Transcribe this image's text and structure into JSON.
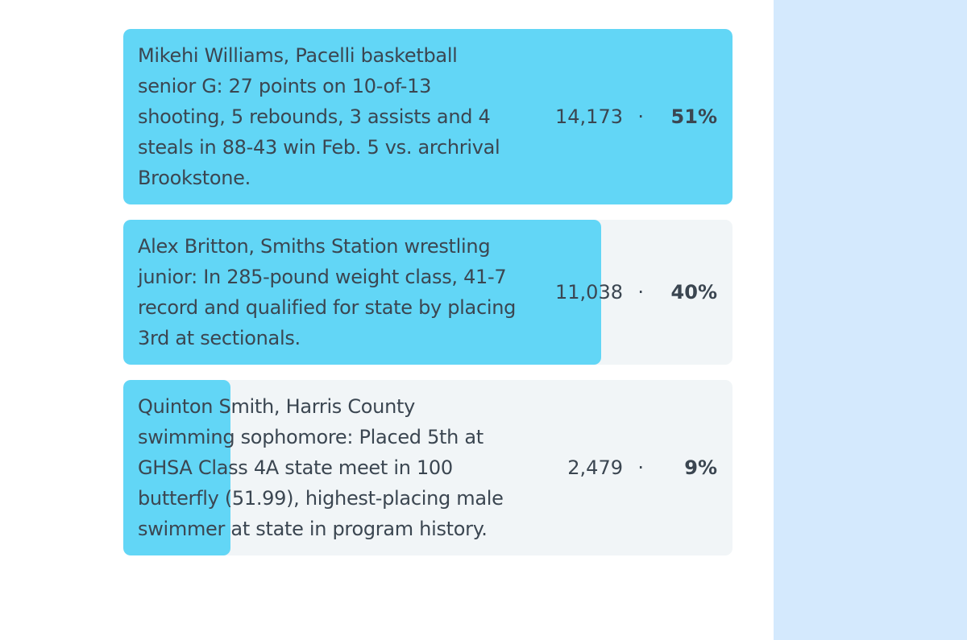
{
  "poll": {
    "options": [
      {
        "label": "Mikehi Williams, Pacelli basketball senior G: 27 points on 10-of-13 shooting, 5 rebounds, 3 assists and 4 steals in 88-43 win Feb. 5 vs. archrival Brookstone.",
        "votes": "14,173",
        "percent": {
          "value": 51,
          "label": "51%"
        }
      },
      {
        "label": "Alex Britton, Smiths Station wrestling junior: In 285-pound weight class, 41-7 record and qualified for state by placing 3rd at sectionals.",
        "votes": "11,038",
        "percent": {
          "value": 40,
          "label": "40%"
        }
      },
      {
        "label": "Quinton Smith, Harris County swimming sophomore: Placed 5th at GHSA Class 4A state meet in 100 butterfly (51.99), highest-placing male swimmer at state in program history.",
        "votes": "2,479",
        "percent": {
          "value": 9,
          "label": "9%"
        }
      }
    ]
  }
}
